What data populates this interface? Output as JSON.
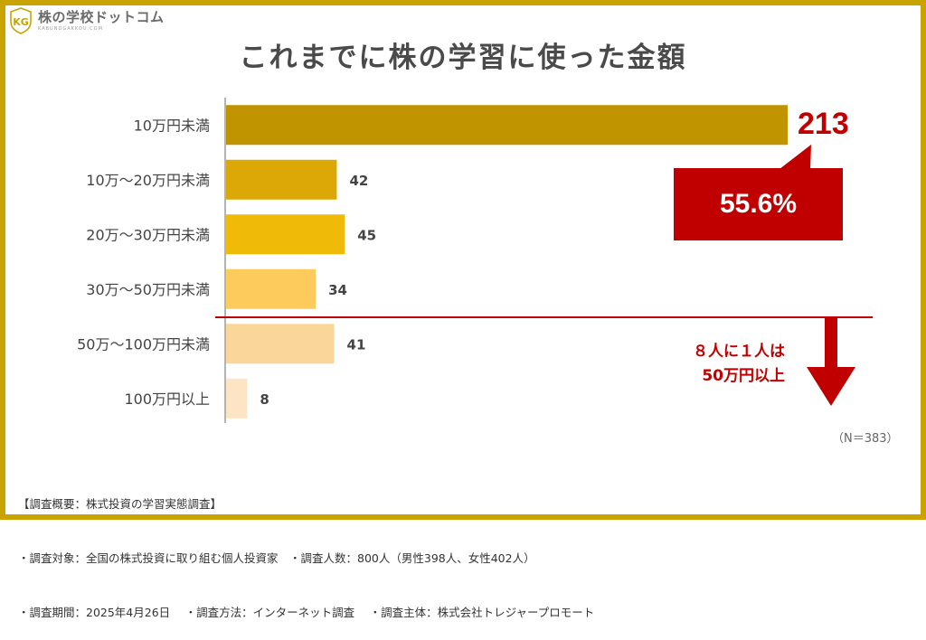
{
  "logo": {
    "name": "株の学校ドットコム",
    "sub": "KABUNOGAKKOU.COM"
  },
  "title": "これまでに株の学習に使った金額",
  "chart_data": {
    "type": "bar",
    "orientation": "horizontal",
    "categories": [
      "10万円未満",
      "10万～20万円未満",
      "20万～30万円未満",
      "30万～50万円未満",
      "50万～100万円未満",
      "100万円以上"
    ],
    "values": [
      213,
      42,
      45,
      34,
      41,
      8
    ],
    "colors": [
      "#c09300",
      "#dca808",
      "#efbb08",
      "#fccb5c",
      "#fbd69a",
      "#fde4c4"
    ],
    "xlim": [
      0,
      213
    ],
    "grid": false,
    "legend": "none"
  },
  "highlight": {
    "value": "213",
    "percent": "55.6%",
    "color": "#c00000"
  },
  "note": {
    "line1": "８人に１人は",
    "line2": "50万円以上"
  },
  "n_label": "（N＝383）",
  "survey": {
    "line1": "【調査概要：株式投資の学習実態調査】",
    "line2": "・調査対象：全国の株式投資に取り組む個人投資家　・調査人数：800人（男性398人、女性402人）",
    "line3": "・調査期間：2025年4月26日　 ・調査方法：インターネット調査　 ・調査主体：株式会社トレジャープロモート"
  }
}
